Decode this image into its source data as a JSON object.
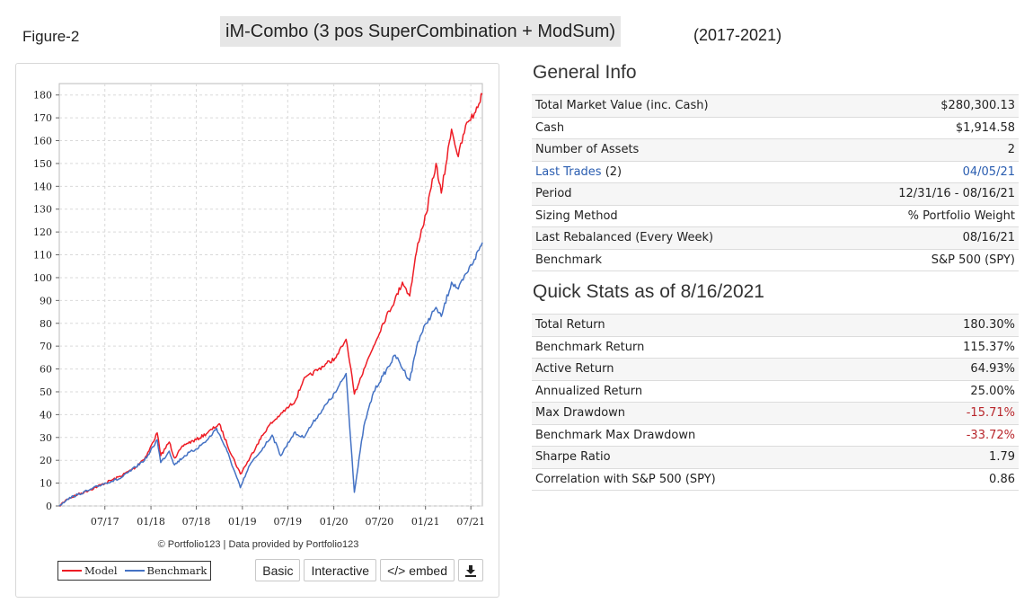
{
  "header": {
    "figure_label": "Figure-2",
    "title": "iM-Combo (3 pos SuperCombination + ModSum)",
    "years": "(2017-2021)"
  },
  "chart_data": {
    "type": "line",
    "x_tick_labels": [
      "07/17",
      "01/18",
      "07/18",
      "01/19",
      "07/19",
      "01/20",
      "07/20",
      "01/21",
      "07/21"
    ],
    "x_ticks": [
      "2017-07-01",
      "2018-01-01",
      "2018-07-01",
      "2019-01-01",
      "2019-07-01",
      "2020-01-01",
      "2020-07-01",
      "2021-01-01",
      "2021-07-01"
    ],
    "xlim": [
      "2016-12-31",
      "2021-08-16"
    ],
    "ylim": [
      0,
      185
    ],
    "y_ticks": [
      0,
      10,
      20,
      30,
      40,
      50,
      60,
      70,
      80,
      90,
      100,
      110,
      120,
      130,
      140,
      150,
      160,
      170,
      180
    ],
    "grid": true,
    "legend_position": "bottom-left",
    "series": [
      {
        "name": "Model",
        "color": "#ee1c25",
        "points": [
          [
            "2016-12-31",
            0
          ],
          [
            "2017-02-01",
            3
          ],
          [
            "2017-03-15",
            5
          ],
          [
            "2017-05-01",
            7
          ],
          [
            "2017-07-01",
            10
          ],
          [
            "2017-09-01",
            13
          ],
          [
            "2017-11-01",
            17
          ],
          [
            "2017-12-15",
            22
          ],
          [
            "2018-01-26",
            32
          ],
          [
            "2018-02-09",
            22
          ],
          [
            "2018-03-15",
            28
          ],
          [
            "2018-04-05",
            21
          ],
          [
            "2018-05-15",
            27
          ],
          [
            "2018-07-01",
            29
          ],
          [
            "2018-08-15",
            32
          ],
          [
            "2018-10-01",
            36
          ],
          [
            "2018-11-01",
            27
          ],
          [
            "2018-12-24",
            14
          ],
          [
            "2019-01-31",
            21
          ],
          [
            "2019-03-01",
            27
          ],
          [
            "2019-04-15",
            35
          ],
          [
            "2019-06-01",
            40
          ],
          [
            "2019-07-31",
            46
          ],
          [
            "2019-09-01",
            55
          ],
          [
            "2019-11-01",
            60
          ],
          [
            "2020-01-10",
            65
          ],
          [
            "2020-02-19",
            73
          ],
          [
            "2020-03-23",
            49
          ],
          [
            "2020-04-30",
            60
          ],
          [
            "2020-06-08",
            70
          ],
          [
            "2020-07-15",
            80
          ],
          [
            "2020-08-31",
            90
          ],
          [
            "2020-10-01",
            98
          ],
          [
            "2020-10-30",
            92
          ],
          [
            "2020-12-01",
            115
          ],
          [
            "2021-01-04",
            128
          ],
          [
            "2021-02-12",
            150
          ],
          [
            "2021-03-05",
            137
          ],
          [
            "2021-04-15",
            165
          ],
          [
            "2021-05-12",
            153
          ],
          [
            "2021-06-15",
            168
          ],
          [
            "2021-07-15",
            172
          ],
          [
            "2021-08-16",
            180.3
          ]
        ]
      },
      {
        "name": "Benchmark",
        "color": "#4472c4",
        "points": [
          [
            "2016-12-31",
            0
          ],
          [
            "2017-02-01",
            3
          ],
          [
            "2017-03-15",
            5
          ],
          [
            "2017-05-01",
            7
          ],
          [
            "2017-07-01",
            10
          ],
          [
            "2017-09-01",
            12
          ],
          [
            "2017-11-01",
            17
          ],
          [
            "2017-12-15",
            21
          ],
          [
            "2018-01-26",
            29
          ],
          [
            "2018-02-09",
            19
          ],
          [
            "2018-03-15",
            24
          ],
          [
            "2018-04-05",
            18
          ],
          [
            "2018-05-15",
            22
          ],
          [
            "2018-07-01",
            25
          ],
          [
            "2018-08-15",
            29
          ],
          [
            "2018-09-20",
            34
          ],
          [
            "2018-11-01",
            24
          ],
          [
            "2018-12-24",
            8
          ],
          [
            "2019-01-31",
            18
          ],
          [
            "2019-03-01",
            22
          ],
          [
            "2019-04-30",
            31
          ],
          [
            "2019-06-03",
            22
          ],
          [
            "2019-07-26",
            32
          ],
          [
            "2019-09-01",
            30
          ],
          [
            "2019-11-01",
            40
          ],
          [
            "2020-01-10",
            50
          ],
          [
            "2020-02-19",
            58
          ],
          [
            "2020-03-23",
            6
          ],
          [
            "2020-04-30",
            35
          ],
          [
            "2020-06-08",
            50
          ],
          [
            "2020-07-15",
            57
          ],
          [
            "2020-09-02",
            66
          ],
          [
            "2020-10-30",
            55
          ],
          [
            "2020-12-01",
            72
          ],
          [
            "2021-01-04",
            80
          ],
          [
            "2021-02-12",
            87
          ],
          [
            "2021-03-05",
            83
          ],
          [
            "2021-04-15",
            98
          ],
          [
            "2021-05-12",
            95
          ],
          [
            "2021-06-15",
            102
          ],
          [
            "2021-07-15",
            108
          ],
          [
            "2021-08-16",
            115.37
          ]
        ]
      }
    ]
  },
  "chart_footer": {
    "credit": "© Portfolio123 | Data provided by Portfolio123",
    "legend": [
      {
        "label": "Model",
        "color": "#ee1c25"
      },
      {
        "label": "Benchmark",
        "color": "#4472c4"
      }
    ],
    "buttons": {
      "basic": "Basic",
      "interactive": "Interactive",
      "embed": "</> embed",
      "download_icon": "download-icon"
    }
  },
  "general_info": {
    "title": "General Info",
    "rows": [
      {
        "label": "Total Market Value (inc. Cash)",
        "value": "$280,300.13"
      },
      {
        "label": "Cash",
        "value": "$1,914.58"
      },
      {
        "label": "Number of Assets",
        "value": "2"
      },
      {
        "label": "Last Trades",
        "label_suffix": " (2)",
        "value": "04/05/21",
        "link": true
      },
      {
        "label": "Period",
        "value": "12/31/16 - 08/16/21"
      },
      {
        "label": "Sizing Method",
        "value": "% Portfolio Weight"
      },
      {
        "label": "Last Rebalanced (Every Week)",
        "value": "08/16/21"
      },
      {
        "label": "Benchmark",
        "value": "S&P 500 (SPY)"
      }
    ]
  },
  "quick_stats": {
    "title": "Quick Stats as of 8/16/2021",
    "negative_color": "#b8262b",
    "rows": [
      {
        "label": "Total Return",
        "value": "180.30%"
      },
      {
        "label": "Benchmark Return",
        "value": "115.37%"
      },
      {
        "label": "Active Return",
        "value": "64.93%"
      },
      {
        "label": "Annualized Return",
        "value": "25.00%"
      },
      {
        "label": "Max Drawdown",
        "value": "-15.71%",
        "negative": true
      },
      {
        "label": "Benchmark Max Drawdown",
        "value": "-33.72%",
        "negative": true
      },
      {
        "label": "Sharpe Ratio",
        "value": "1.79"
      },
      {
        "label": "Correlation with S&P 500 (SPY)",
        "value": "0.86"
      }
    ]
  }
}
